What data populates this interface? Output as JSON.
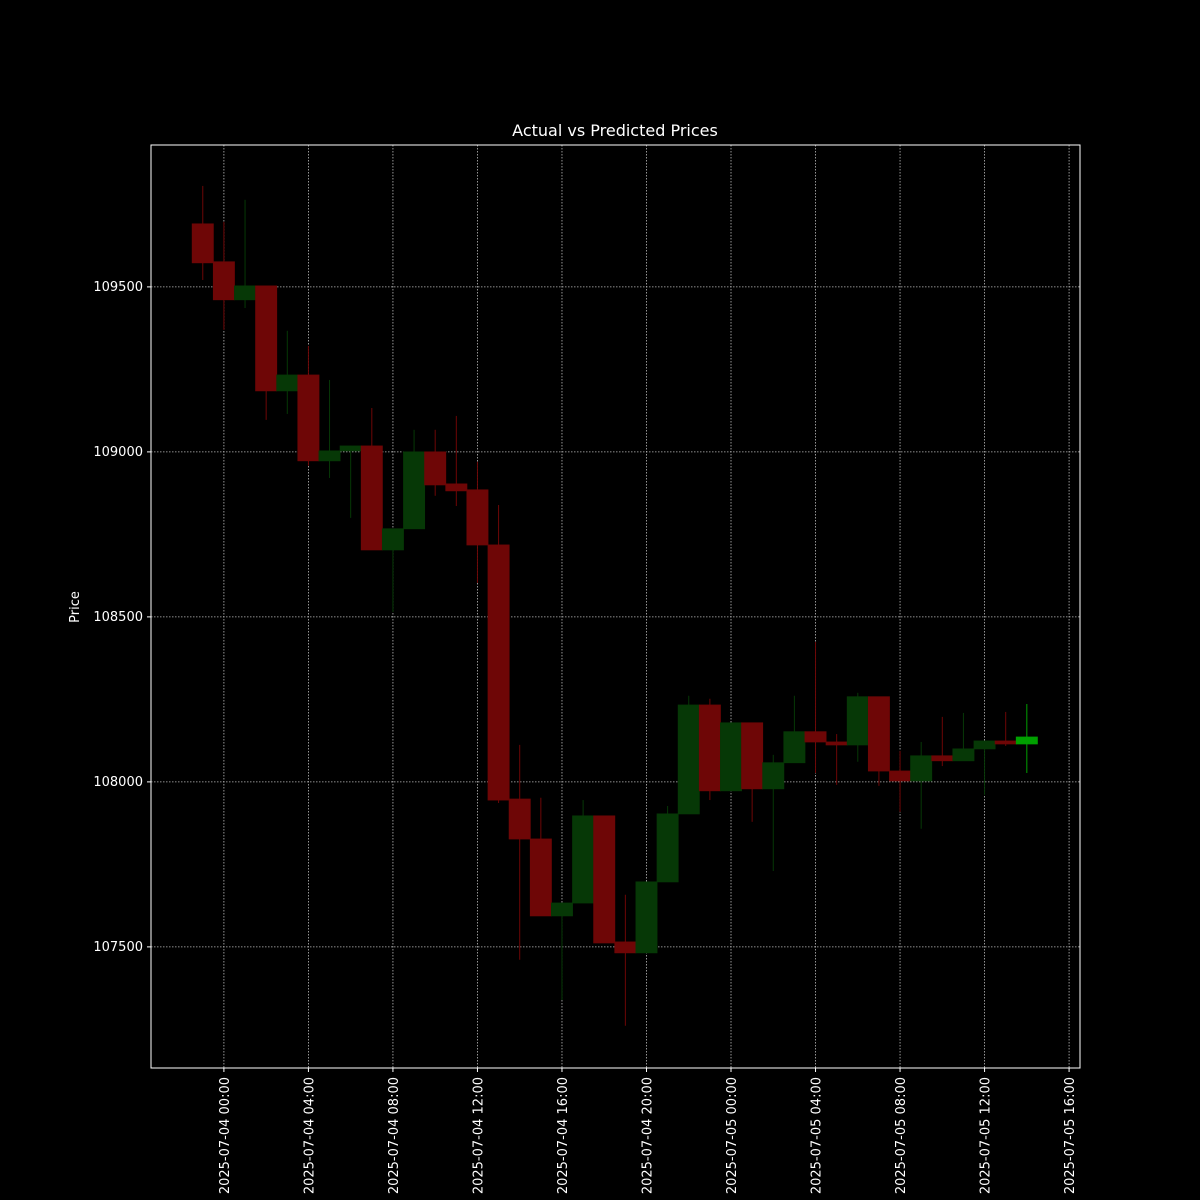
{
  "chart_data": {
    "type": "candlestick",
    "title": "Actual vs Predicted Prices",
    "ylabel": "Price",
    "x": [
      "2025-07-03 23:00",
      "2025-07-04 00:00",
      "2025-07-04 01:00",
      "2025-07-04 02:00",
      "2025-07-04 03:00",
      "2025-07-04 04:00",
      "2025-07-04 05:00",
      "2025-07-04 06:00",
      "2025-07-04 07:00",
      "2025-07-04 08:00",
      "2025-07-04 09:00",
      "2025-07-04 10:00",
      "2025-07-04 11:00",
      "2025-07-04 12:00",
      "2025-07-04 13:00",
      "2025-07-04 14:00",
      "2025-07-04 15:00",
      "2025-07-04 16:00",
      "2025-07-04 17:00",
      "2025-07-04 18:00",
      "2025-07-04 19:00",
      "2025-07-04 20:00",
      "2025-07-04 21:00",
      "2025-07-04 22:00",
      "2025-07-04 23:00",
      "2025-07-05 00:00",
      "2025-07-05 01:00",
      "2025-07-05 02:00",
      "2025-07-05 03:00",
      "2025-07-05 04:00",
      "2025-07-05 05:00",
      "2025-07-05 06:00",
      "2025-07-05 07:00",
      "2025-07-05 08:00",
      "2025-07-05 09:00",
      "2025-07-05 10:00",
      "2025-07-05 11:00",
      "2025-07-05 12:00",
      "2025-07-05 13:00"
    ],
    "open": [
      109691,
      109576,
      109461,
      109503,
      109185,
      109233,
      108973,
      109003,
      109018,
      108703,
      108767,
      109000,
      108903,
      108885,
      108718,
      107948,
      107827,
      107594,
      107633,
      107897,
      107515,
      107482,
      107697,
      107903,
      108233,
      107973,
      108179,
      107979,
      108058,
      108152,
      108121,
      108112,
      108258,
      108033,
      108003,
      108079,
      108064,
      108100,
      108124
    ],
    "high": [
      109806,
      109697,
      109764,
      109503,
      109367,
      109321,
      109218,
      109018,
      109133,
      108767,
      109067,
      109067,
      109109,
      108970,
      108839,
      108112,
      107952,
      107633,
      107945,
      107897,
      107658,
      107697,
      107927,
      108261,
      108252,
      108179,
      108179,
      108082,
      108261,
      108424,
      108145,
      108270,
      108258,
      108094,
      108121,
      108197,
      108209,
      108124,
      108212
    ],
    "low": [
      109521,
      109370,
      109436,
      109097,
      109115,
      108958,
      108921,
      108800,
      108703,
      108515,
      108767,
      108867,
      108836,
      108603,
      107936,
      107461,
      107594,
      107339,
      107633,
      107512,
      107261,
      107482,
      107697,
      107903,
      107945,
      107973,
      107879,
      107730,
      108058,
      108027,
      107991,
      108061,
      107988,
      107909,
      107858,
      108048,
      108064,
      107961,
      108109
    ],
    "close": [
      109573,
      109461,
      109503,
      109185,
      109233,
      108973,
      109003,
      109018,
      108703,
      108767,
      109000,
      108900,
      108882,
      108718,
      107945,
      107827,
      107594,
      107633,
      107897,
      107512,
      107482,
      107697,
      107903,
      108233,
      107973,
      108179,
      107979,
      108058,
      108152,
      108121,
      108112,
      108258,
      108033,
      108003,
      108079,
      108064,
      108100,
      108124,
      108115
    ],
    "predicted": {
      "x": [
        "2025-07-05 14:00"
      ],
      "open": [
        108115
      ],
      "high": [
        108236
      ],
      "low": [
        108027
      ],
      "close": [
        108136
      ]
    },
    "xlim": [
      "2025-07-03 20:33",
      "2025-07-05 16:31"
    ],
    "xticks": [
      "2025-07-04 00:00",
      "2025-07-04 04:00",
      "2025-07-04 08:00",
      "2025-07-04 12:00",
      "2025-07-04 16:00",
      "2025-07-04 20:00",
      "2025-07-05 00:00",
      "2025-07-05 04:00",
      "2025-07-05 08:00",
      "2025-07-05 12:00",
      "2025-07-05 16:00"
    ],
    "ylim": [
      107133,
      109930
    ],
    "yticks": [
      107500,
      108000,
      108500,
      109000,
      109500
    ],
    "grid": true,
    "up_color": "#063806",
    "down_color": "#6e0606",
    "predicted_color": "#00a000"
  }
}
